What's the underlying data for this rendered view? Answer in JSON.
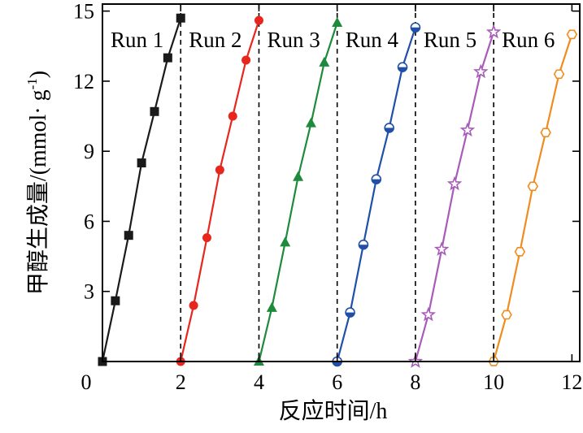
{
  "chart_data": {
    "type": "line",
    "title": "",
    "xlabel": "反应时间/h",
    "ylabel": "甲醇生成量/(mmol· g",
    "ylabel_sup": "-1",
    "ylabel_tail": ")",
    "xlim": [
      0,
      12.2
    ],
    "ylim": [
      0,
      15.3
    ],
    "x_ticks": [
      0,
      2,
      4,
      6,
      8,
      10,
      12
    ],
    "y_ticks": [
      3,
      6,
      9,
      12,
      15
    ],
    "x_tick_labels": [
      "0",
      "2",
      "4",
      "6",
      "8",
      "10",
      "12"
    ],
    "y_tick_labels": [
      "3",
      "6",
      "9",
      "12",
      "15"
    ],
    "separators": [
      2,
      4,
      6,
      8,
      10
    ],
    "grid": false,
    "series": [
      {
        "name": "Run 1",
        "color": "#1a1a1a",
        "marker": "square",
        "x": [
          0,
          0.33,
          0.67,
          1.0,
          1.33,
          1.67,
          2.0
        ],
        "y": [
          0,
          2.6,
          5.4,
          8.5,
          10.7,
          13.0,
          14.7
        ]
      },
      {
        "name": "Run 2",
        "color": "#e8261e",
        "marker": "circle",
        "x": [
          2.0,
          2.33,
          2.67,
          3.0,
          3.33,
          3.67,
          4.0
        ],
        "y": [
          0,
          2.4,
          5.3,
          8.2,
          10.5,
          12.9,
          14.6
        ]
      },
      {
        "name": "Run 3",
        "color": "#1e8a3c",
        "marker": "triangle",
        "x": [
          4.0,
          4.33,
          4.67,
          5.0,
          5.33,
          5.67,
          6.0
        ],
        "y": [
          0,
          2.3,
          5.1,
          7.9,
          10.2,
          12.8,
          14.5
        ]
      },
      {
        "name": "Run 4",
        "color": "#1f4fa8",
        "marker": "half-circle",
        "x": [
          6.0,
          6.33,
          6.67,
          7.0,
          7.33,
          7.67,
          8.0
        ],
        "y": [
          0,
          2.1,
          5.0,
          7.8,
          10.0,
          12.6,
          14.3
        ]
      },
      {
        "name": "Run 5",
        "color": "#a85bb8",
        "marker": "star",
        "x": [
          8.0,
          8.33,
          8.67,
          9.0,
          9.33,
          9.67,
          10.0
        ],
        "y": [
          0,
          2.0,
          4.8,
          7.6,
          9.9,
          12.4,
          14.1
        ]
      },
      {
        "name": "Run 6",
        "color": "#f08c1e",
        "marker": "hexagon",
        "x": [
          10.0,
          10.33,
          10.67,
          11.0,
          11.33,
          11.67,
          12.0
        ],
        "y": [
          0,
          2.0,
          4.7,
          7.5,
          9.8,
          12.3,
          14.0
        ]
      }
    ]
  }
}
